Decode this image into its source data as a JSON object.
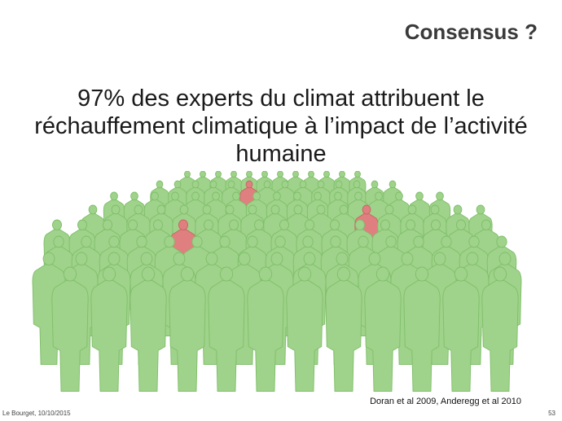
{
  "slide": {
    "title": "Consensus ?",
    "headline": "97% des experts du climat attribuent le réchauffement climatique à l’impact de l’activité humaine",
    "citation": "Doran et al 2009, Anderegg et al 2010",
    "footer_left": "Le Bourget, 10/10/2015",
    "page_number": "53"
  },
  "illustration": {
    "subject": "crowd-of-people",
    "agreeing_color": "#9fd28a",
    "agreeing_outline": "#7fbf6a",
    "dissenting_color": "#e07f7f",
    "dissenting_outline": "#c86565"
  }
}
